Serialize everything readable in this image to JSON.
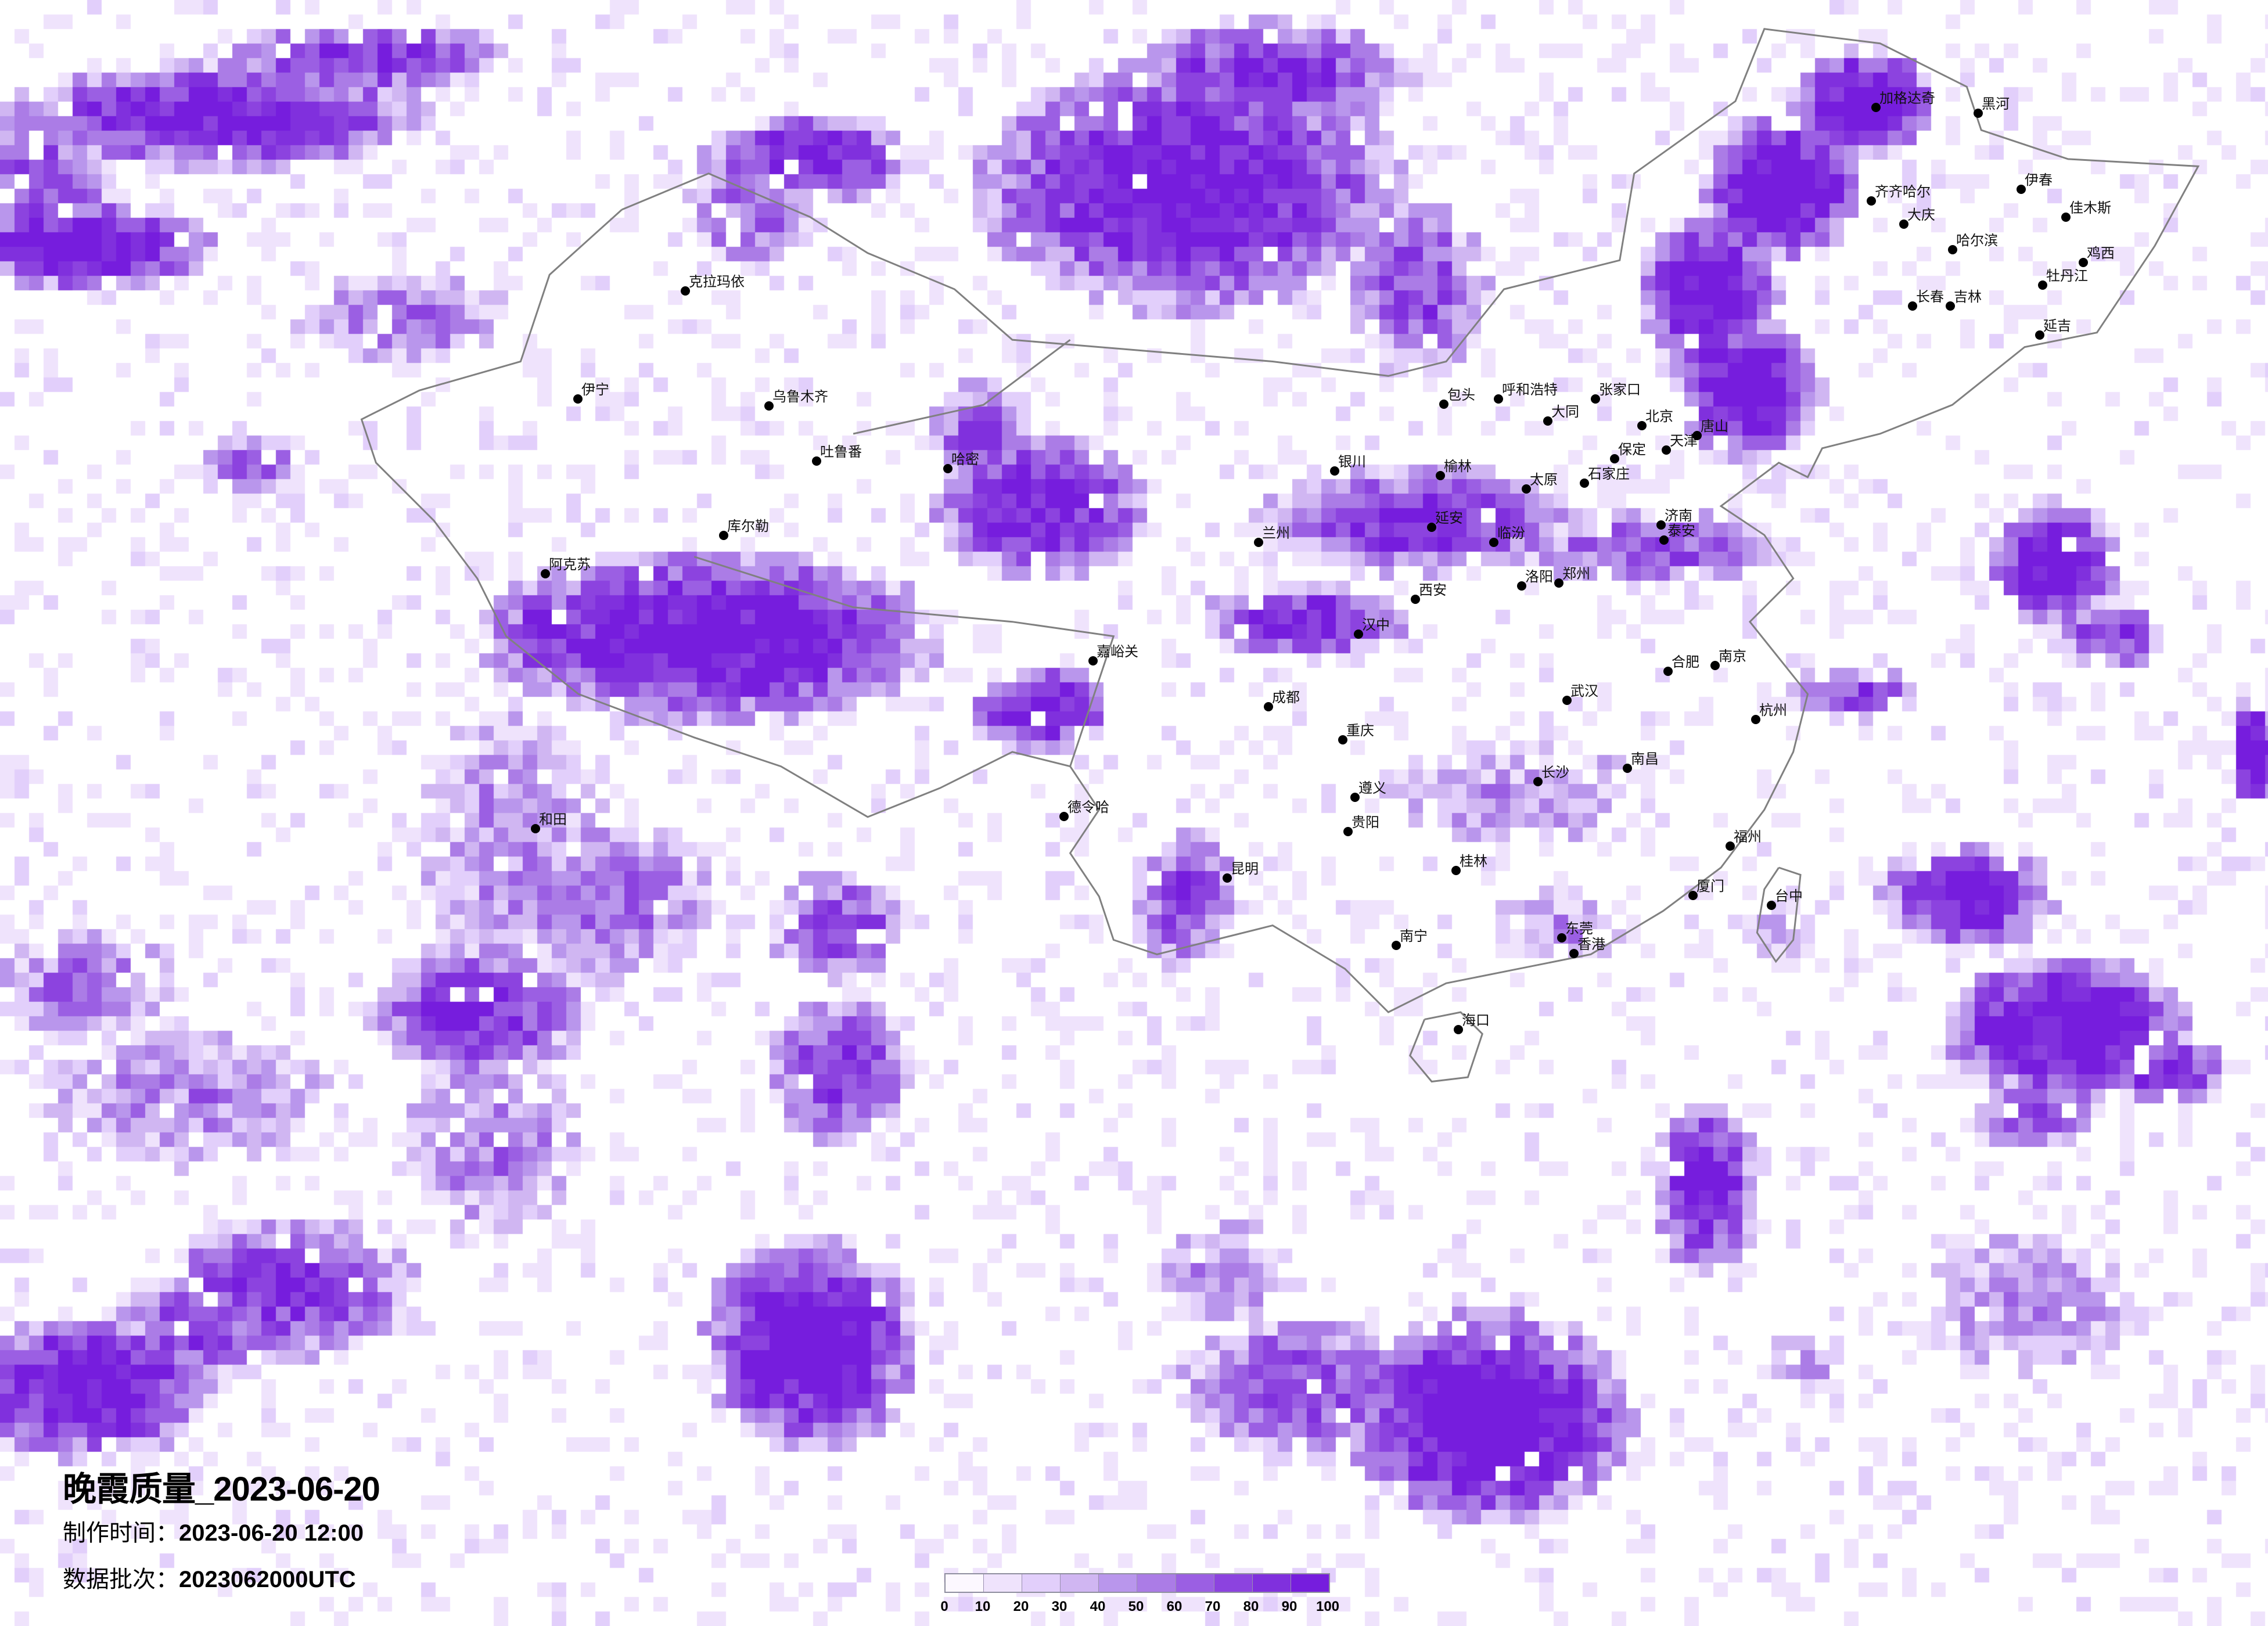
{
  "title": "晚霞质量_2023-06-20",
  "production_time": {
    "label": "制作时间：",
    "value": "2023-06-20 12:00"
  },
  "data_batch": {
    "label": "数据批次：",
    "value": "2023062000UTC"
  },
  "legend": {
    "ticks": [
      "0",
      "10",
      "20",
      "30",
      "40",
      "50",
      "60",
      "70",
      "80",
      "90",
      "100"
    ],
    "colors": [
      "#fcf8ff",
      "#efe3fc",
      "#e2cffb",
      "#d0b6f2",
      "#b996ec",
      "#ab7ce6",
      "#9b5fe3",
      "#8c43df",
      "#8030dd",
      "#761ddd"
    ]
  },
  "map": {
    "border_color": "#808080",
    "city_dot_color": "#000000",
    "cities": [
      "北京",
      "天津",
      "石家庄",
      "太原",
      "呼和浩特",
      "包头",
      "银川",
      "兰州",
      "西安",
      "郑州",
      "济南",
      "延安",
      "洛阳",
      "大同",
      "张家口",
      "唐山",
      "榆林",
      "临汾",
      "泰安",
      "保定",
      "哈尔滨",
      "长春",
      "齐齐哈尔",
      "黑河",
      "加格达奇",
      "伊春",
      "佳木斯",
      "牡丹江",
      "大庆",
      "吉林",
      "延吉",
      "鸡西",
      "乌鲁木齐",
      "克拉玛依",
      "伊宁",
      "阿克苏",
      "库尔勒",
      "哈密",
      "吐鲁番",
      "和田",
      "嘉峪关",
      "德令哈",
      "成都",
      "重庆",
      "武汉",
      "长沙",
      "贵阳",
      "昆明",
      "南宁",
      "东莞",
      "南昌",
      "福州",
      "杭州",
      "合肥",
      "南京",
      "海口",
      "香港",
      "台中",
      "厦门",
      "桂林",
      "汉中",
      "遵义"
    ]
  }
}
